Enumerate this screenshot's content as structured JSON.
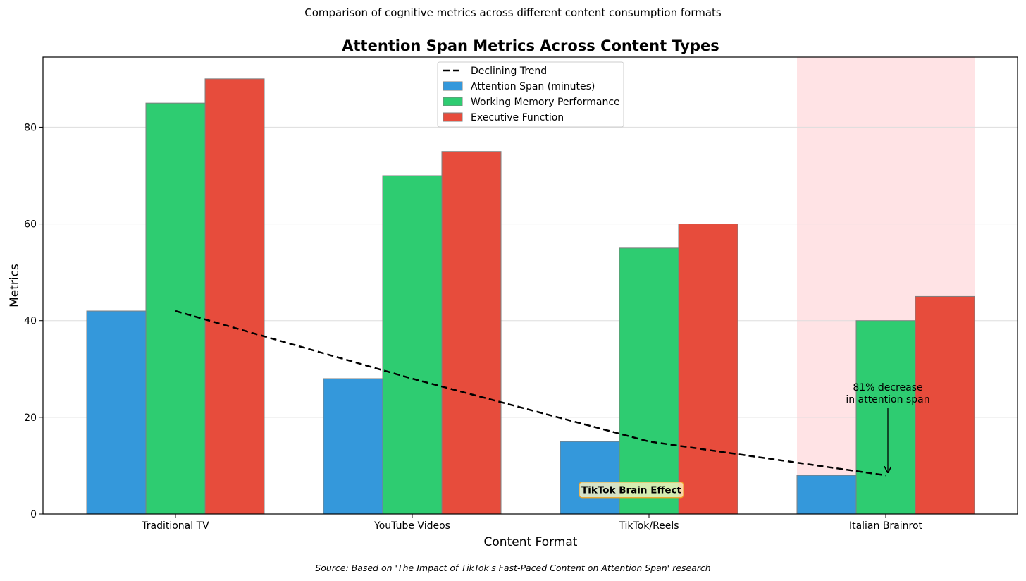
{
  "chart_data": {
    "type": "bar",
    "suptitle": "Comparison of cognitive metrics across different content consumption formats",
    "title": "Attention Span Metrics Across Content Types",
    "xlabel": "Content Format",
    "ylabel": "Metrics",
    "source": "Source: Based on 'The Impact of TikTok's Fast-Paced Content on Attention Span' research",
    "categories": [
      "Traditional TV",
      "YouTube Videos",
      "TikTok/Reels",
      "Italian Brainrot"
    ],
    "series": [
      {
        "name": "Attention Span (minutes)",
        "color": "#3498db",
        "values": [
          42,
          28,
          15,
          8
        ]
      },
      {
        "name": "Working Memory Performance",
        "color": "#2ecc71",
        "values": [
          85,
          70,
          55,
          40
        ]
      },
      {
        "name": "Executive Function",
        "color": "#e74c3c",
        "values": [
          90,
          75,
          60,
          45
        ]
      }
    ],
    "trend": {
      "name": "Declining Trend",
      "values": [
        42,
        28,
        15,
        8
      ]
    },
    "highlight_category": "Italian Brainrot",
    "highlight_color": "#ffc0c5",
    "annotations": [
      {
        "text_lines": [
          "81% decrease",
          "in attention span"
        ],
        "category": "Italian Brainrot",
        "arrow_to_y": 8
      },
      {
        "text": "TikTok Brain Effect",
        "category": "TikTok/Reels",
        "y": 5
      }
    ],
    "ylim": [
      0,
      94.5
    ],
    "yticks": [
      0,
      20,
      40,
      60,
      80
    ],
    "grid": "y",
    "legend_position": "top-center"
  }
}
